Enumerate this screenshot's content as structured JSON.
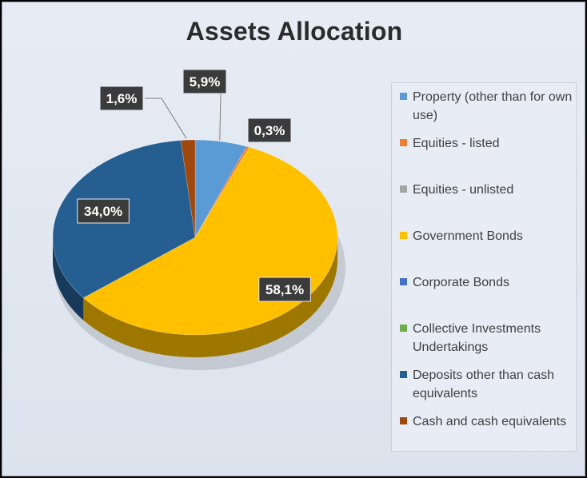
{
  "chart_data": {
    "type": "pie",
    "title": "Assets Allocation",
    "legend_position": "right",
    "slices": [
      {
        "name": "Property (other than for own use)",
        "value": 5.9,
        "label": "5,9%",
        "color": "#5b9bd5"
      },
      {
        "name": "Equities - listed",
        "value": 0.3,
        "label": "0,3%",
        "color": "#ed7d31"
      },
      {
        "name": "Equities - unlisted",
        "value": 0.0,
        "label": "",
        "color": "#a5a5a5"
      },
      {
        "name": "Government Bonds",
        "value": 58.1,
        "label": "58,1%",
        "color": "#ffc000"
      },
      {
        "name": "Corporate Bonds",
        "value": 0.0,
        "label": "",
        "color": "#4472c4"
      },
      {
        "name": "Collective Investments Undertakings",
        "value": 0.0,
        "label": "",
        "color": "#70ad47"
      },
      {
        "name": "Deposits other than cash equivalents",
        "value": 34.0,
        "label": "34,0%",
        "color": "#255e91"
      },
      {
        "name": "Cash and cash equivalents",
        "value": 1.6,
        "label": "1,6%",
        "color": "#9e480e"
      }
    ]
  }
}
